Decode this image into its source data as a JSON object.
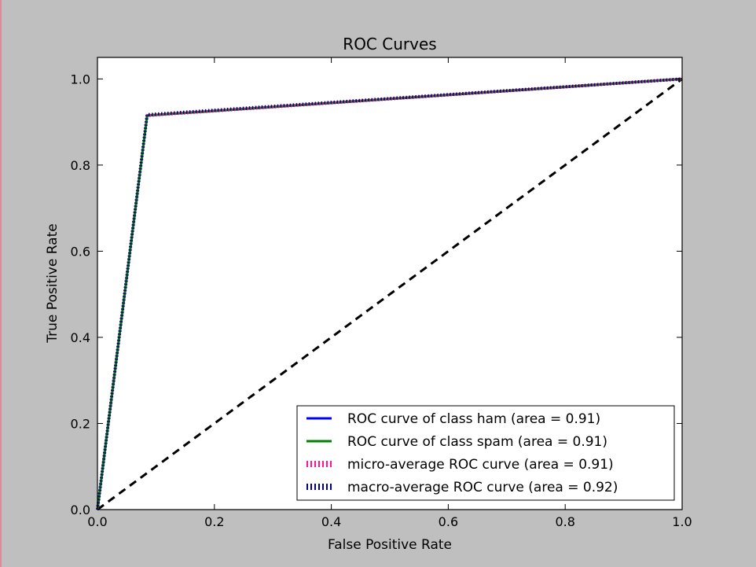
{
  "chart_data": {
    "type": "line",
    "title": "ROC Curves",
    "xlabel": "False Positive Rate",
    "ylabel": "True Positive Rate",
    "xlim": [
      0.0,
      1.0
    ],
    "ylim": [
      0.0,
      1.05
    ],
    "xticks": [
      "0.0",
      "0.2",
      "0.4",
      "0.6",
      "0.8",
      "1.0"
    ],
    "yticks": [
      "0.0",
      "0.2",
      "0.4",
      "0.6",
      "0.8",
      "1.0"
    ],
    "grid": false,
    "legend_placement": "lower-right",
    "series": [
      {
        "name": "ROC curve of class ham (area = 0.91)",
        "color": "#0000ff",
        "style": "solid",
        "x": [
          0.0,
          0.085,
          1.0
        ],
        "y": [
          0.0,
          0.915,
          1.0
        ]
      },
      {
        "name": "ROC curve of class spam (area = 0.91)",
        "color": "#008000",
        "style": "solid",
        "x": [
          0.0,
          0.085,
          1.0
        ],
        "y": [
          0.0,
          0.915,
          1.0
        ]
      },
      {
        "name": "micro-average ROC curve (area = 0.91)",
        "color": "#ff1493",
        "style": "dotted",
        "x": [
          0.0,
          0.085,
          1.0
        ],
        "y": [
          0.0,
          0.915,
          1.0
        ]
      },
      {
        "name": "macro-average ROC curve (area = 0.92)",
        "color": "#000080",
        "style": "dotted",
        "x": [
          0.0,
          0.085,
          1.0
        ],
        "y": [
          0.0,
          0.917,
          1.0
        ]
      }
    ],
    "reference_line": {
      "x": [
        0.0,
        1.0
      ],
      "y": [
        0.0,
        1.0
      ],
      "color": "#000000",
      "style": "dashed"
    }
  }
}
